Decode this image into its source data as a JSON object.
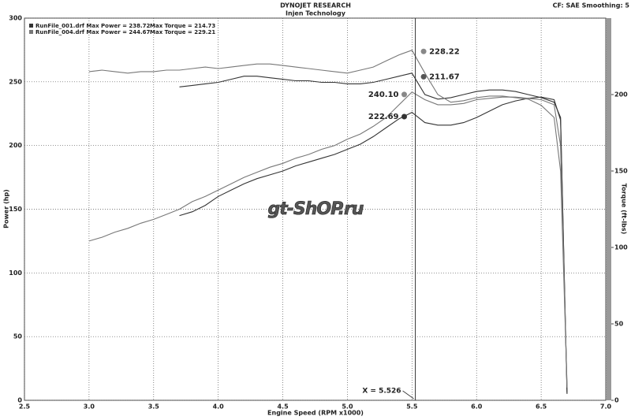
{
  "chart_data": {
    "type": "line",
    "title": "DYNOJET RESEARCH",
    "subtitle": "Injen Technology",
    "settings_text": "CF: SAE  Smoothing: 5",
    "watermark": "gt-ShOP.ru",
    "x_label": "Engine Speed (RPM x1000)",
    "y_label": "Power (hp)",
    "y2_label": "Torque (ft-lbs)",
    "xlim": [
      2.5,
      7.0
    ],
    "xticks": [
      2.5,
      {
        "value": 3,
        "label": "3.0"
      },
      3.5,
      {
        "value": 4,
        "label": "4.0"
      },
      4.5,
      {
        "value": 5,
        "label": "5.0"
      },
      5.5,
      {
        "value": 6,
        "label": "6.0"
      },
      6.5,
      {
        "value": 7,
        "label": "7.0"
      }
    ],
    "ylim": [
      0,
      300
    ],
    "yticks": [
      0,
      50,
      100,
      150,
      200,
      250,
      300
    ],
    "y2lim": [
      0,
      250
    ],
    "y2ticks": [
      0,
      50,
      100,
      150,
      200
    ],
    "grid": true,
    "legend": [
      {
        "power": "RunFile_001.drf Max Power = 238.72",
        "torque": "Max Torque = 214.73"
      },
      {
        "power": "RunFile_004.drf Max Power = 244.67",
        "torque": "Max Torque = 229.21"
      }
    ],
    "x": [
      3.0,
      3.1,
      3.2,
      3.3,
      3.4,
      3.5,
      3.6,
      3.7,
      3.8,
      3.9,
      4.0,
      4.1,
      4.2,
      4.3,
      4.4,
      4.5,
      4.6,
      4.7,
      4.8,
      4.9,
      5.0,
      5.1,
      5.2,
      5.3,
      5.4,
      5.5,
      5.6,
      5.7,
      5.8,
      5.9,
      6.0,
      6.1,
      6.2,
      6.3,
      6.4,
      6.5,
      6.6,
      6.65,
      6.7
    ],
    "series": [
      {
        "color": "#333333",
        "values": [
          null,
          null,
          null,
          null,
          null,
          null,
          null,
          145,
          148,
          153,
          160,
          165,
          170,
          174,
          177,
          180,
          184,
          187,
          190,
          193,
          197,
          201,
          207,
          214,
          221,
          226,
          218,
          216,
          216,
          218,
          222,
          227,
          232,
          235,
          237,
          238,
          236,
          220,
          5
        ]
      },
      {
        "color": "#333333",
        "axis": "y2",
        "values": [
          null,
          null,
          null,
          null,
          null,
          null,
          null,
          205,
          206,
          207,
          208,
          210,
          212,
          212,
          211,
          210,
          209,
          209,
          208,
          208,
          207,
          207,
          208,
          210,
          212,
          214,
          200,
          197,
          198,
          200,
          202,
          203,
          203,
          202,
          200,
          198,
          195,
          185,
          5
        ]
      },
      {
        "color": "#777777",
        "values": [
          125,
          128,
          132,
          135,
          139,
          142,
          146,
          150,
          156,
          160,
          165,
          170,
          175,
          179,
          183,
          186,
          190,
          193,
          197,
          200,
          205,
          209,
          215,
          222,
          232,
          242,
          236,
          232,
          232,
          233,
          236,
          237,
          238,
          238,
          237,
          236,
          232,
          200,
          10
        ]
      },
      {
        "color": "#777777",
        "axis": "y2",
        "values": [
          215,
          216,
          215,
          214,
          215,
          215,
          216,
          216,
          217,
          218,
          217,
          218,
          219,
          220,
          220,
          219,
          218,
          217,
          216,
          215,
          214,
          216,
          218,
          222,
          226,
          229,
          214,
          200,
          195,
          196,
          198,
          199,
          199,
          198,
          197,
          193,
          185,
          150,
          10
        ]
      }
    ],
    "annotations": [
      {
        "x": 5.59,
        "value": 228.22,
        "label": "228.22",
        "axis": "y2",
        "color": "#888888"
      },
      {
        "x": 5.59,
        "value": 211.67,
        "label": "211.67",
        "axis": "y2",
        "color": "#555555"
      },
      {
        "x": 5.44,
        "value": 240.1,
        "label": "240.10",
        "color": "#888888"
      },
      {
        "x": 5.44,
        "value": 222.69,
        "label": "222.69",
        "color": "#333333"
      }
    ],
    "cursor": {
      "value": 5.526,
      "label": "X = 5.526"
    }
  }
}
